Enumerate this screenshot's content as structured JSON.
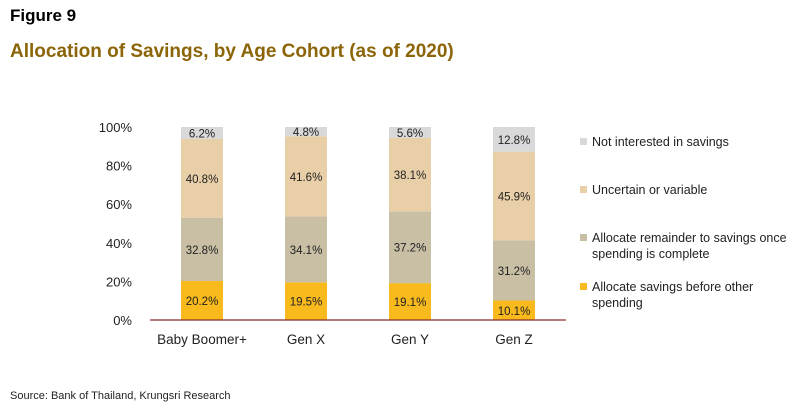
{
  "figure_label": "Figure 9",
  "title": "Allocation of Savings, by Age Cohort (as of 2020)",
  "source": "Source: Bank of Thailand, Krungsri Research",
  "colors": {
    "title": "#8B6508",
    "before_other": "#F8BA1C",
    "remainder": "#C8BFA5",
    "uncertain": "#E9CFA7",
    "not_interested": "#D9D9D9",
    "axis": "#8B2D2D"
  },
  "chart_data": {
    "type": "bar",
    "stacked": true,
    "categories": [
      "Baby Boomer+",
      "Gen X",
      "Gen Y",
      "Gen Z"
    ],
    "series": [
      {
        "name": "Allocate savings before other spending",
        "values": [
          20.2,
          19.5,
          19.1,
          10.1
        ],
        "labels": [
          "20.2%",
          "19.5%",
          "19.1%",
          "10.1%"
        ]
      },
      {
        "name": "Allocate remainder to savings once spending is complete",
        "values": [
          32.8,
          34.1,
          37.2,
          31.2
        ],
        "labels": [
          "32.8%",
          "34.1%",
          "37.2%",
          "31.2%"
        ]
      },
      {
        "name": "Uncertain or variable",
        "values": [
          40.8,
          41.6,
          38.1,
          45.9
        ],
        "labels": [
          "40.8%",
          "41.6%",
          "38.1%",
          "45.9%"
        ]
      },
      {
        "name": "Not interested in savings",
        "values": [
          6.2,
          4.8,
          5.6,
          12.8
        ],
        "labels": [
          "6.2%",
          "4.8%",
          "5.6%",
          "12.8%"
        ]
      }
    ],
    "ylim": [
      0,
      100
    ],
    "yticks": [
      0,
      20,
      40,
      60,
      80,
      100
    ],
    "ytick_labels": [
      "0%",
      "20%",
      "40%",
      "60%",
      "80%",
      "100%"
    ],
    "legend_position": "right",
    "legend_order": [
      "Not interested in savings",
      "Uncertain or variable",
      "Allocate remainder to savings once spending is complete",
      "Allocate savings before other spending"
    ],
    "grid": false
  }
}
